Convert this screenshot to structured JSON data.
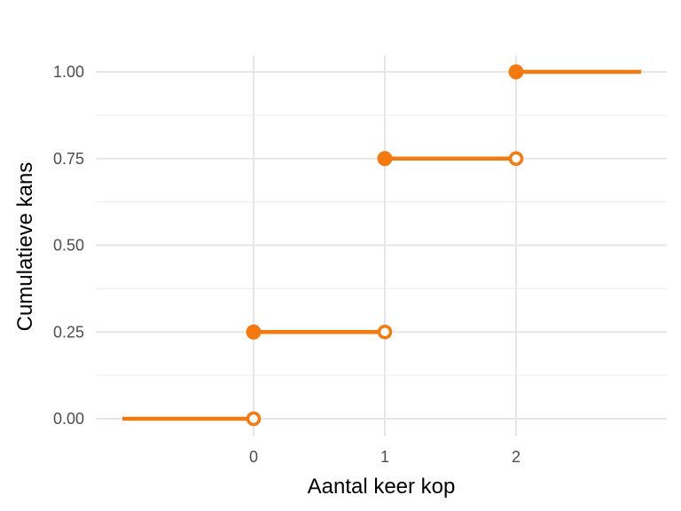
{
  "chart_data": {
    "type": "line",
    "subtype": "step",
    "title": "",
    "xlabel": "Aantal keer kop",
    "ylabel": "Cumulatieve kans",
    "xlim": [
      -1,
      3
    ],
    "ylim": [
      0,
      1
    ],
    "x_ticks": [
      0,
      1,
      2
    ],
    "x_tick_labels": [
      "0",
      "1",
      "2"
    ],
    "y_ticks": [
      0,
      0.25,
      0.5,
      0.75,
      1
    ],
    "y_tick_labels": [
      "0.00",
      "0.25",
      "0.50",
      "0.75",
      "1.00"
    ],
    "grid": true,
    "legend": "none",
    "color": "#f47a0f",
    "segments": [
      {
        "x_start": -1,
        "x_end": 0,
        "y": 0.0
      },
      {
        "x_start": 0,
        "x_end": 1,
        "y": 0.25
      },
      {
        "x_start": 1,
        "x_end": 2,
        "y": 0.75
      },
      {
        "x_start": 2,
        "x_end": 3,
        "y": 1.0
      }
    ],
    "closed_points": [
      {
        "x": 0,
        "y": 0.25
      },
      {
        "x": 1,
        "y": 0.75
      },
      {
        "x": 2,
        "y": 1.0
      }
    ],
    "open_points": [
      {
        "x": 0,
        "y": 0.0
      },
      {
        "x": 1,
        "y": 0.25
      },
      {
        "x": 2,
        "y": 0.75
      }
    ]
  }
}
